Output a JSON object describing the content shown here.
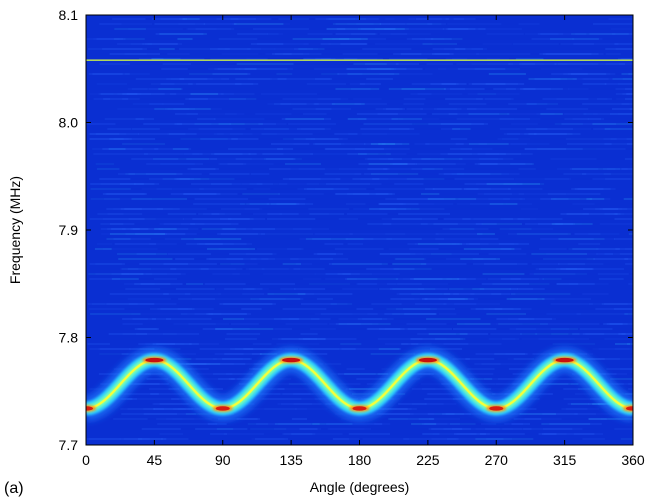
{
  "panel_label": "(a)",
  "chart_data": {
    "type": "heatmap",
    "title": "",
    "xlabel": "Angle (degrees)",
    "ylabel": "Frequency (MHz)",
    "xlim": [
      0,
      360
    ],
    "ylim": [
      7.7,
      8.1
    ],
    "x_ticks": [
      0,
      45,
      90,
      135,
      180,
      225,
      270,
      315,
      360
    ],
    "y_ticks": [
      7.7,
      7.8,
      7.9,
      8.0,
      8.1
    ],
    "y_tick_labels": [
      "7.7",
      "7.8",
      "7.9",
      "8.0",
      "8.1"
    ],
    "colormap": "jet",
    "background_color": "#0a2fd2",
    "features": [
      {
        "kind": "constant-band",
        "frequency_mhz": 8.058,
        "x_range": [
          0,
          360
        ]
      },
      {
        "kind": "sinusoidal-band",
        "mean_frequency_mhz": 7.7565,
        "amplitude_mhz": 0.0225,
        "period_degrees": 90,
        "peaks": [
          {
            "angle": 45,
            "frequency_mhz": 7.779
          },
          {
            "angle": 135,
            "frequency_mhz": 7.779
          },
          {
            "angle": 225,
            "frequency_mhz": 7.779
          },
          {
            "angle": 315,
            "frequency_mhz": 7.779
          }
        ],
        "troughs": [
          {
            "angle": 0,
            "frequency_mhz": 7.734
          },
          {
            "angle": 90,
            "frequency_mhz": 7.734
          },
          {
            "angle": 180,
            "frequency_mhz": 7.734
          },
          {
            "angle": 270,
            "frequency_mhz": 7.734
          },
          {
            "angle": 360,
            "frequency_mhz": 7.734
          }
        ]
      }
    ]
  }
}
